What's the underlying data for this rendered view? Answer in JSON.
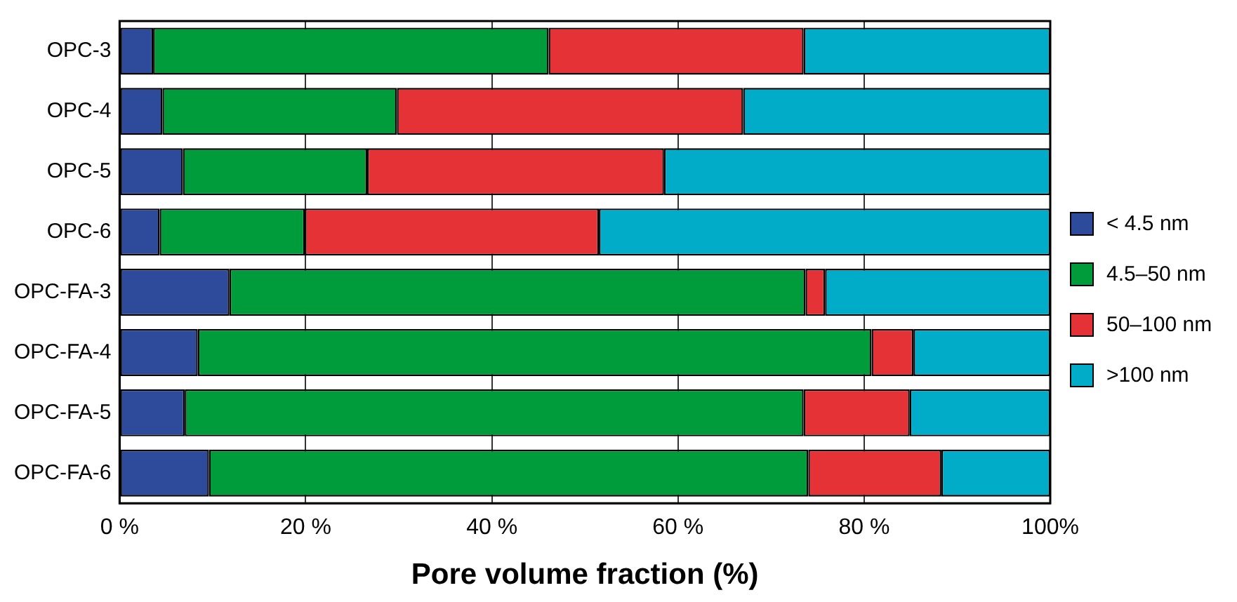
{
  "chart_data": {
    "type": "bar",
    "orientation": "horizontal",
    "stacked": true,
    "xlabel": "Pore volume fraction (%)",
    "categories": [
      "OPC-3",
      "OPC-4",
      "OPC-5",
      "OPC-6",
      "OPC-FA-3",
      "OPC-FA-4",
      "OPC-FA-5",
      "OPC-FA-6"
    ],
    "series": [
      {
        "name": "< 4.5 nm",
        "color": "#2e4a9b",
        "values": [
          3.6,
          4.6,
          6.8,
          4.3,
          11.8,
          8.4,
          7.0,
          9.6
        ]
      },
      {
        "name": "4.5–50 nm",
        "color": "#009b3a",
        "values": [
          42.5,
          25.2,
          19.8,
          15.6,
          61.9,
          72.4,
          66.5,
          64.4
        ]
      },
      {
        "name": "50–100 nm",
        "color": "#e53236",
        "values": [
          27.4,
          37.2,
          31.9,
          31.6,
          2.1,
          4.5,
          11.4,
          14.3
        ]
      },
      {
        "name": ">100 nm",
        "color": "#00acc8",
        "values": [
          26.5,
          33.0,
          41.5,
          48.5,
          24.2,
          14.7,
          15.1,
          11.7
        ]
      }
    ],
    "xlim": [
      0,
      100
    ],
    "xticks": [
      {
        "value": 0,
        "label": "0 %"
      },
      {
        "value": 20,
        "label": "20 %"
      },
      {
        "value": 40,
        "label": "40 %"
      },
      {
        "value": 60,
        "label": "60 %"
      },
      {
        "value": 80,
        "label": "80 %"
      },
      {
        "value": 100,
        "label": "100%"
      }
    ],
    "grid": "x",
    "legend": "right"
  }
}
